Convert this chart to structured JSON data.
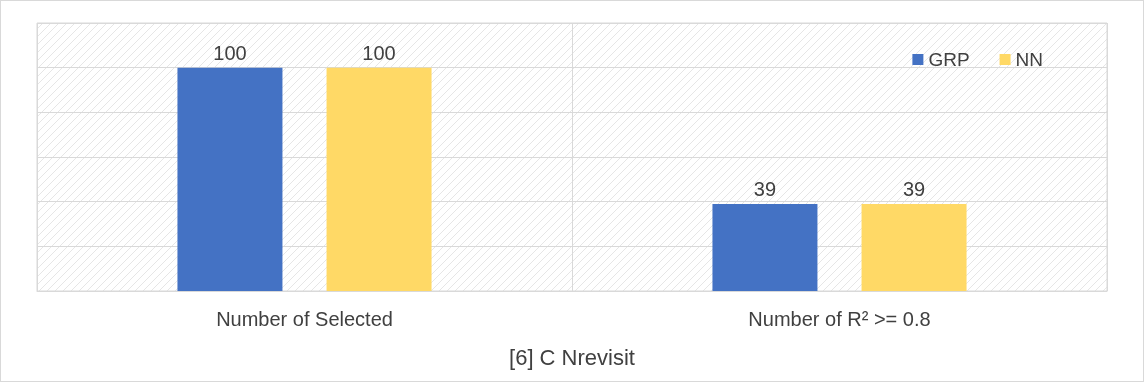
{
  "chart_data": {
    "type": "bar",
    "title": "[6] C Nrevisit",
    "categories": [
      "Number of Selected",
      "Number of R² >= 0.8"
    ],
    "series": [
      {
        "name": "GRP",
        "color": "#4472c4",
        "values": [
          100,
          39
        ]
      },
      {
        "name": "NN",
        "color": "#ffd966",
        "values": [
          100,
          39
        ]
      }
    ],
    "ylim": [
      0,
      120
    ],
    "yticks": [
      {
        "value": 0,
        "label": null
      },
      {
        "value": 20,
        "label": null
      },
      {
        "value": 40,
        "label": null
      },
      {
        "value": 60,
        "label": null
      },
      {
        "value": 80,
        "label": null
      },
      {
        "value": 100,
        "label": null
      },
      {
        "value": 120,
        "label": null
      }
    ],
    "tick_labels": "x",
    "grid": true,
    "legend": "top right",
    "data_labels": true
  }
}
